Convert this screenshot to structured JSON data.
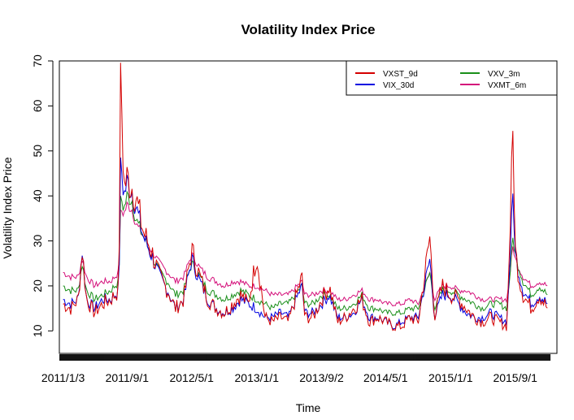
{
  "chart_data": {
    "type": "line",
    "title": "Volatility Index Price",
    "xlabel": "Time",
    "ylabel": "Volatility Index Price",
    "ylim": [
      5,
      70
    ],
    "y_ticks": [
      10,
      20,
      30,
      40,
      50,
      60,
      70
    ],
    "x_ticks": [
      "2011/1/3",
      "2011/9/1",
      "2012/5/1",
      "2013/1/1",
      "2013/9/2",
      "2014/5/1",
      "2015/1/1",
      "2015/9/1"
    ],
    "x_tick_dates": [
      "2011-01-03",
      "2011-09-01",
      "2012-05-01",
      "2013-01-01",
      "2013-09-02",
      "2014-05-01",
      "2015-01-01",
      "2015-09-01"
    ],
    "x_range": [
      "2010-12-20",
      "2016-02-05"
    ],
    "grid": false,
    "legend_position": "top-right",
    "colors": {
      "VXST_9d": "#d40000",
      "VIX_30d": "#0000e0",
      "VXV_3m": "#1a8f1a",
      "VXMT_6m": "#d4107a"
    },
    "dates": [
      "2011-01-03",
      "2011-02-01",
      "2011-03-01",
      "2011-03-16",
      "2011-04-01",
      "2011-05-01",
      "2011-06-01",
      "2011-07-01",
      "2011-08-01",
      "2011-08-08",
      "2011-08-20",
      "2011-09-01",
      "2011-09-20",
      "2011-10-03",
      "2011-11-01",
      "2011-12-01",
      "2012-01-01",
      "2012-02-01",
      "2012-03-01",
      "2012-04-01",
      "2012-05-01",
      "2012-06-01",
      "2012-07-01",
      "2012-08-01",
      "2012-09-01",
      "2012-10-01",
      "2012-11-01",
      "2012-12-01",
      "2013-01-01",
      "2013-02-01",
      "2013-03-01",
      "2013-04-01",
      "2013-05-01",
      "2013-06-20",
      "2013-07-01",
      "2013-08-01",
      "2013-09-02",
      "2013-10-01",
      "2013-11-01",
      "2013-12-01",
      "2014-01-01",
      "2014-02-01",
      "2014-03-01",
      "2014-04-01",
      "2014-05-01",
      "2014-06-01",
      "2014-07-01",
      "2014-08-01",
      "2014-09-01",
      "2014-10-15",
      "2014-11-01",
      "2014-12-01",
      "2015-01-01",
      "2015-02-01",
      "2015-03-01",
      "2015-04-01",
      "2015-05-01",
      "2015-06-01",
      "2015-07-01",
      "2015-08-01",
      "2015-08-24",
      "2015-09-01",
      "2015-09-15",
      "2015-10-01",
      "2015-11-01",
      "2015-12-01",
      "2015-12-31"
    ],
    "series": [
      {
        "name": "VXST_9d",
        "values": [
          16,
          15,
          17,
          28,
          17,
          14,
          16,
          17,
          19,
          68,
          42,
          44,
          42,
          40,
          32,
          28,
          22,
          19,
          15,
          17,
          28,
          22,
          17,
          15,
          14,
          16,
          18,
          16,
          27,
          13,
          12,
          13,
          12,
          22,
          13,
          13,
          17,
          20,
          12,
          13,
          15,
          17,
          12,
          13,
          12,
          11,
          11,
          13,
          12,
          31,
          13,
          20,
          18,
          17,
          15,
          13,
          12,
          13,
          12,
          11,
          55,
          28,
          22,
          18,
          15,
          18,
          15
        ]
      },
      {
        "name": "VIX_30d",
        "values": [
          17,
          16,
          17,
          28,
          17,
          15,
          17,
          17,
          19,
          48,
          40,
          43,
          41,
          38,
          31,
          27,
          22,
          19,
          15,
          17,
          26,
          21,
          17,
          15,
          14,
          15,
          17,
          16,
          15,
          13,
          13,
          14,
          13,
          20,
          14,
          14,
          16,
          18,
          13,
          13,
          14,
          17,
          13,
          13,
          12,
          11,
          12,
          13,
          13,
          26,
          13,
          18,
          18,
          16,
          14,
          13,
          13,
          14,
          13,
          12,
          41,
          27,
          23,
          19,
          16,
          18,
          16
        ]
      },
      {
        "name": "VXV_3m",
        "values": [
          20,
          19,
          19,
          25,
          19,
          17,
          18,
          19,
          21,
          40,
          37,
          40,
          39,
          35,
          31,
          27,
          23,
          21,
          18,
          19,
          25,
          22,
          19,
          18,
          17,
          18,
          19,
          18,
          17,
          16,
          15,
          16,
          16,
          20,
          16,
          16,
          18,
          18,
          15,
          15,
          16,
          18,
          15,
          15,
          14,
          14,
          14,
          15,
          15,
          23,
          15,
          19,
          19,
          18,
          17,
          16,
          15,
          16,
          16,
          15,
          31,
          27,
          24,
          21,
          18,
          20,
          18
        ]
      },
      {
        "name": "VXMT_6m",
        "values": [
          23,
          22,
          22,
          26,
          22,
          20,
          21,
          21,
          23,
          37,
          36,
          38,
          37,
          34,
          31,
          28,
          25,
          23,
          21,
          22,
          27,
          24,
          22,
          21,
          20,
          21,
          21,
          20,
          20,
          19,
          18,
          18,
          18,
          21,
          18,
          18,
          19,
          19,
          17,
          17,
          18,
          19,
          17,
          17,
          16,
          16,
          16,
          17,
          16,
          23,
          17,
          20,
          20,
          19,
          19,
          18,
          17,
          17,
          17,
          17,
          29,
          26,
          24,
          22,
          20,
          21,
          20
        ]
      }
    ]
  }
}
